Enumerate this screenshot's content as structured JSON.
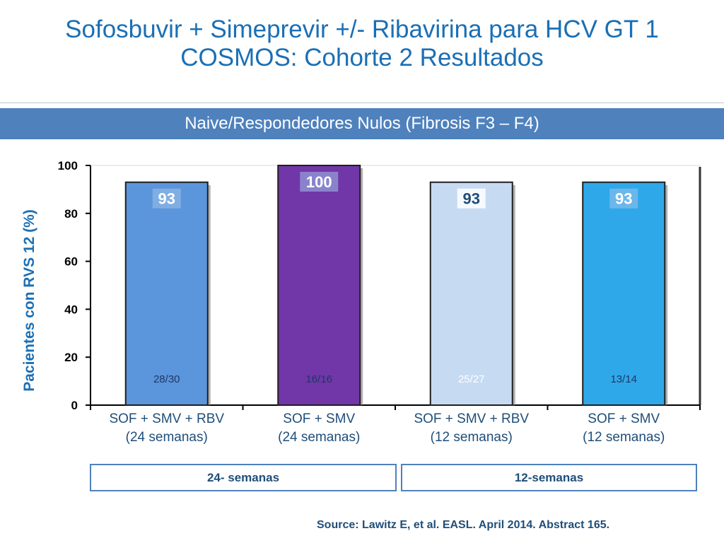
{
  "title_line1": "Sofosbuvir + Simeprevir +/- Ribavirina para HCV GT 1",
  "title_line2": "COSMOS: Cohorte 2 Resultados",
  "banner": "Naive/Respondedores Nulos  (Fibrosis F3 – F4)",
  "source": "Source: Lawitz E, et al.  EASL. April 2014.  Abstract 165.",
  "groups": [
    "24- semanas",
    "12-semanas"
  ],
  "colors": {
    "title": "#1a6fb5",
    "banner": "#4f81bd",
    "bars": [
      "#5b95dc",
      "#7136a8",
      "#c6daf2",
      "#2fa8ea"
    ]
  },
  "chart_data": {
    "type": "bar",
    "ylabel": "Pacientes con RVS  12 (%)",
    "ylim": [
      0,
      100
    ],
    "yticks": [
      0,
      20,
      40,
      60,
      80,
      100
    ],
    "categories": [
      [
        "SOF + SMV + RBV",
        "(24 semanas)"
      ],
      [
        "SOF + SMV",
        "(24 semanas)"
      ],
      [
        "SOF + SMV + RBV",
        "(12 semanas)"
      ],
      [
        "SOF + SMV",
        "(12 semanas)"
      ]
    ],
    "values": [
      93,
      100,
      93,
      93
    ],
    "value_labels": [
      "93",
      "100",
      "93",
      "93"
    ],
    "fractions": [
      "28/30",
      "16/16",
      "25/27",
      "13/14"
    ],
    "grid": false
  }
}
